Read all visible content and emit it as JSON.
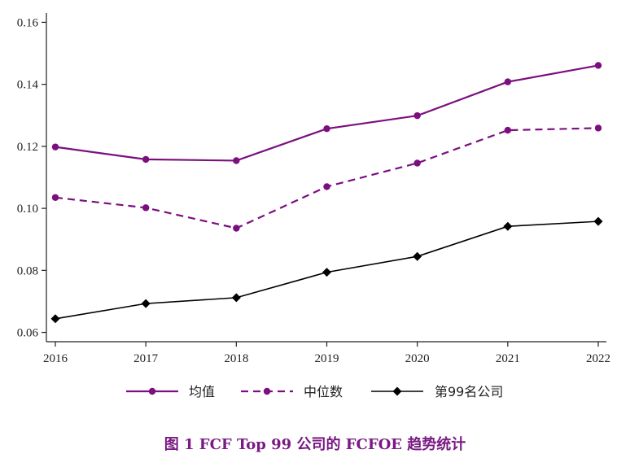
{
  "caption": "图 1 FCF Top 99 公司的 FCFOE 趋势统计",
  "chart_data": {
    "type": "line",
    "title": "",
    "xlabel": "",
    "ylabel": "",
    "x": [
      "2016",
      "2017",
      "2018",
      "2019",
      "2020",
      "2021",
      "2022"
    ],
    "ylim": [
      0.057,
      0.163
    ],
    "yticks": [
      "0.06",
      "0.08",
      "0.10",
      "0.12",
      "0.14",
      "0.16"
    ],
    "grid": false,
    "legend_position": "bottom",
    "series": [
      {
        "name": "均值",
        "color": "#7b0f7f",
        "style": "solid",
        "marker": "circle",
        "values": [
          0.1198,
          0.1158,
          0.1154,
          0.1257,
          0.1299,
          0.1408,
          0.1461
        ]
      },
      {
        "name": "中位数",
        "color": "#7b0f7f",
        "style": "dashed",
        "marker": "circle",
        "values": [
          0.1035,
          0.1002,
          0.0936,
          0.107,
          0.1146,
          0.1252,
          0.1259
        ]
      },
      {
        "name": "第99名公司",
        "color": "#000000",
        "style": "solid",
        "marker": "diamond",
        "values": [
          0.0644,
          0.0693,
          0.0712,
          0.0794,
          0.0845,
          0.0942,
          0.0958
        ]
      }
    ]
  }
}
